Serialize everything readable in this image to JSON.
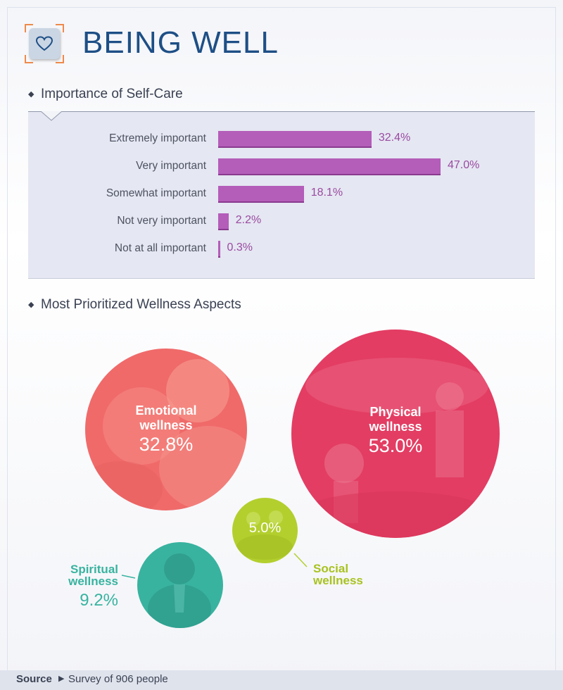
{
  "header": {
    "title": "BEING WELL",
    "logo_icon": "heart-icon"
  },
  "colors": {
    "title": "#1e4f86",
    "bar": "#b45db9",
    "emotional": "#f06a6a",
    "physical": "#e33d63",
    "social": "#b3cf2e",
    "spiritual": "#38b3a0"
  },
  "chart_data": [
    {
      "type": "bar",
      "orientation": "horizontal",
      "title": "Importance of Self-Care",
      "categories": [
        "Extremely important",
        "Very important",
        "Somewhat important",
        "Not very important",
        "Not at all important"
      ],
      "values": [
        32.4,
        47.0,
        18.1,
        2.2,
        0.3
      ],
      "value_labels": [
        "32.4%",
        "47.0%",
        "18.1%",
        "2.2%",
        "0.3%"
      ],
      "unit": "%"
    },
    {
      "type": "bubble",
      "title": "Most Prioritized Wellness Aspects",
      "items": [
        {
          "name": "Emotional wellness",
          "value": 32.8,
          "label": "32.8%"
        },
        {
          "name": "Physical wellness",
          "value": 53.0,
          "label": "53.0%"
        },
        {
          "name": "Social wellness",
          "value": 5.0,
          "label": "5.0%"
        },
        {
          "name": "Spiritual wellness",
          "value": 9.2,
          "label": "9.2%"
        }
      ]
    }
  ],
  "footer": {
    "source_label": "Source",
    "source_text": "Survey of 906 people"
  }
}
